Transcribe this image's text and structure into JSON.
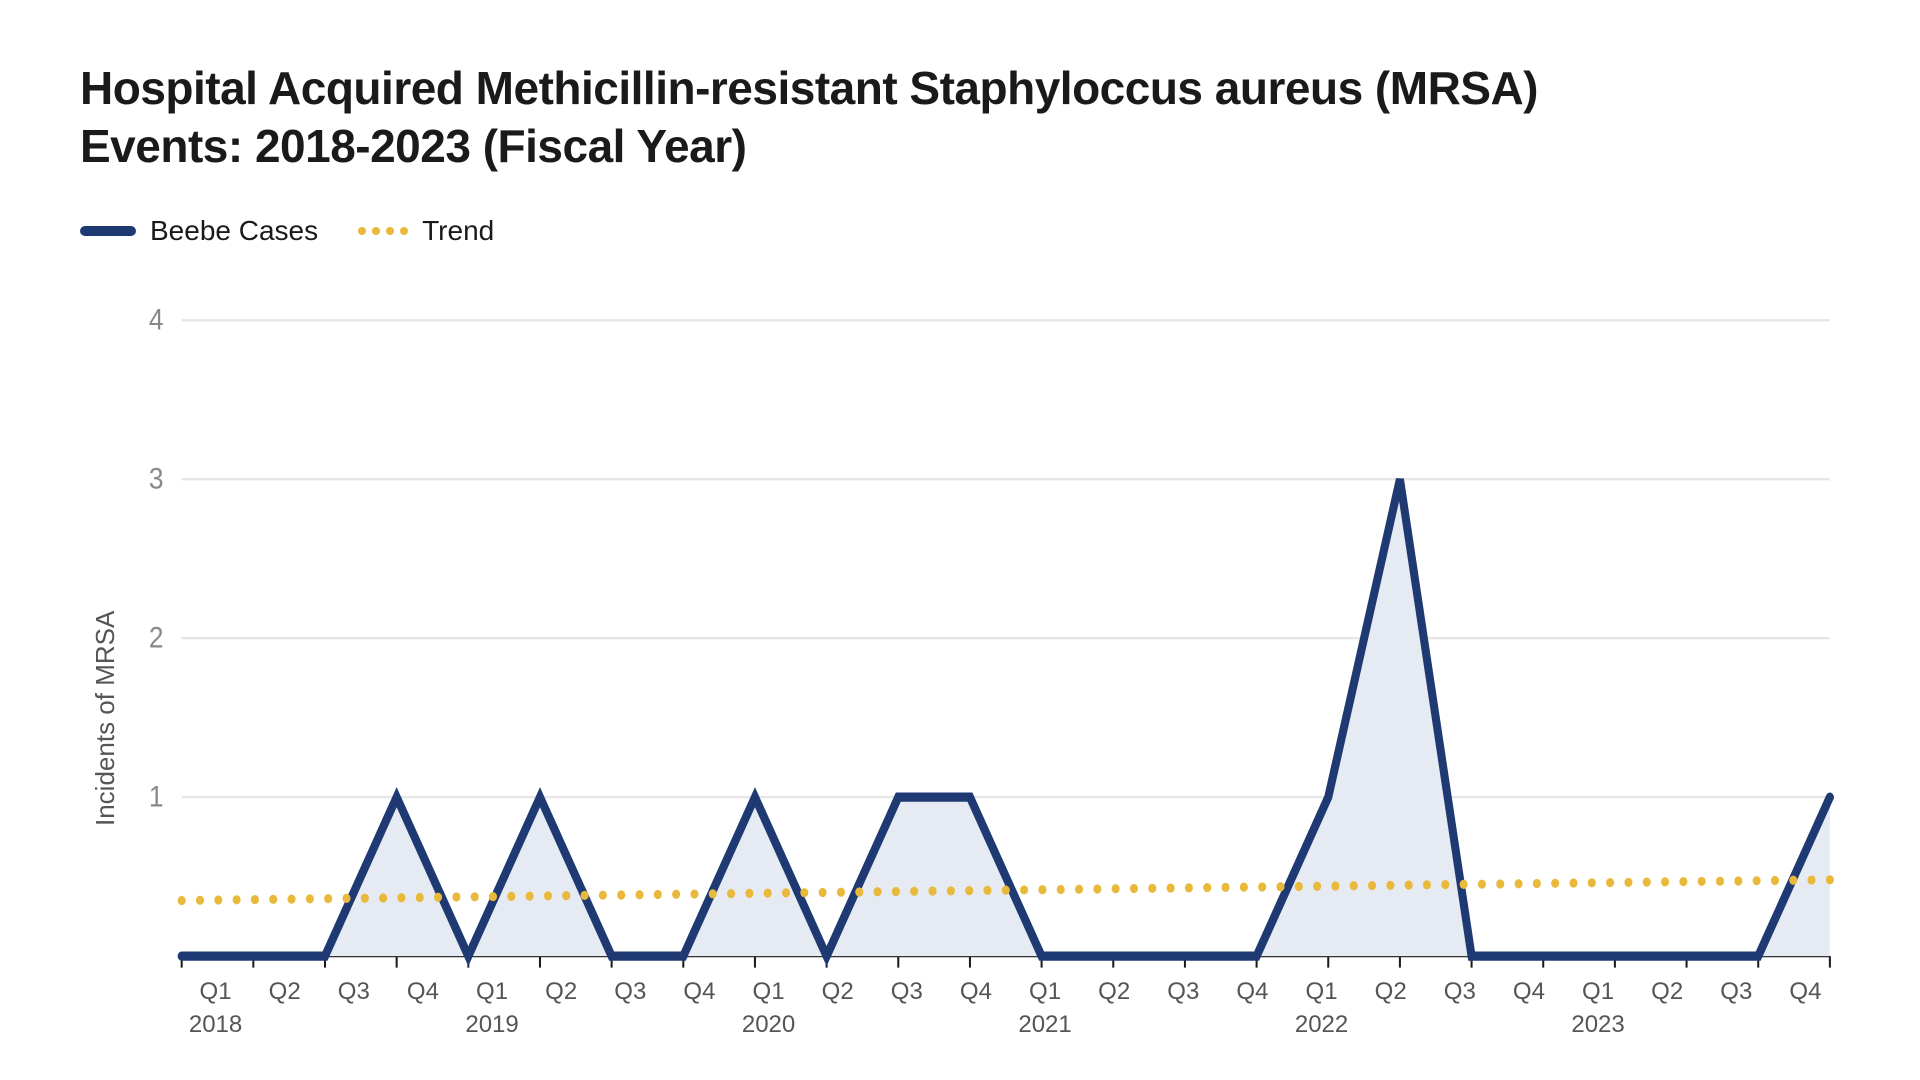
{
  "title_line1": "Hospital Acquired Methicillin-resistant Staphyloccus aureus (MRSA)",
  "title_line2": "Events: 2018-2023 (Fiscal Year)",
  "title_fontsize": 46,
  "title_color": "#1a1a1a",
  "legend": {
    "series_label": "Beebe Cases",
    "trend_label": "Trend",
    "fontsize": 28
  },
  "y_axis": {
    "label": "Incidents of MRSA",
    "label_fontsize": 26,
    "label_color": "#555555",
    "ticks": [
      "1",
      "2",
      "3",
      "4"
    ],
    "tick_values": [
      1,
      2,
      3,
      4
    ],
    "ylim_min": 0,
    "ylim_max": 4.2,
    "tick_color": "#888888",
    "grid_color": "#e6e6e6",
    "axis_color": "#1a1a1a"
  },
  "x_axis": {
    "labels": [
      {
        "q": "Q1",
        "year": "2018"
      },
      {
        "q": "Q2",
        "year": ""
      },
      {
        "q": "Q3",
        "year": ""
      },
      {
        "q": "Q4",
        "year": ""
      },
      {
        "q": "Q1",
        "year": "2019"
      },
      {
        "q": "Q2",
        "year": ""
      },
      {
        "q": "Q3",
        "year": ""
      },
      {
        "q": "Q4",
        "year": ""
      },
      {
        "q": "Q1",
        "year": "2020"
      },
      {
        "q": "Q2",
        "year": ""
      },
      {
        "q": "Q3",
        "year": ""
      },
      {
        "q": "Q4",
        "year": ""
      },
      {
        "q": "Q1",
        "year": "2021"
      },
      {
        "q": "Q2",
        "year": ""
      },
      {
        "q": "Q3",
        "year": ""
      },
      {
        "q": "Q4",
        "year": ""
      },
      {
        "q": "Q1",
        "year": "2022"
      },
      {
        "q": "Q2",
        "year": ""
      },
      {
        "q": "Q3",
        "year": ""
      },
      {
        "q": "Q4",
        "year": ""
      },
      {
        "q": "Q1",
        "year": "2023"
      },
      {
        "q": "Q2",
        "year": ""
      },
      {
        "q": "Q3",
        "year": ""
      },
      {
        "q": "Q4",
        "year": ""
      }
    ],
    "fontsize": 24,
    "color": "#555555",
    "tick_height": 10,
    "tick_color": "#1a1a1a"
  },
  "series": {
    "type": "area-line",
    "values": [
      0,
      0,
      0,
      1,
      0,
      1,
      0,
      0,
      1,
      0,
      1,
      1,
      0,
      0,
      0,
      0,
      1,
      3,
      0,
      0,
      0,
      0,
      0,
      1
    ],
    "line_color": "#1f3a73",
    "line_width": 8,
    "fill_color": "#e6eaf2",
    "fill_opacity": 1
  },
  "trend": {
    "type": "dotted-line",
    "start_value": 0.35,
    "end_value": 0.48,
    "color": "#e8b93a",
    "dot_radius": 4,
    "dot_gap": 18
  },
  "background_color": "#ffffff",
  "plot_left_pad": 60
}
